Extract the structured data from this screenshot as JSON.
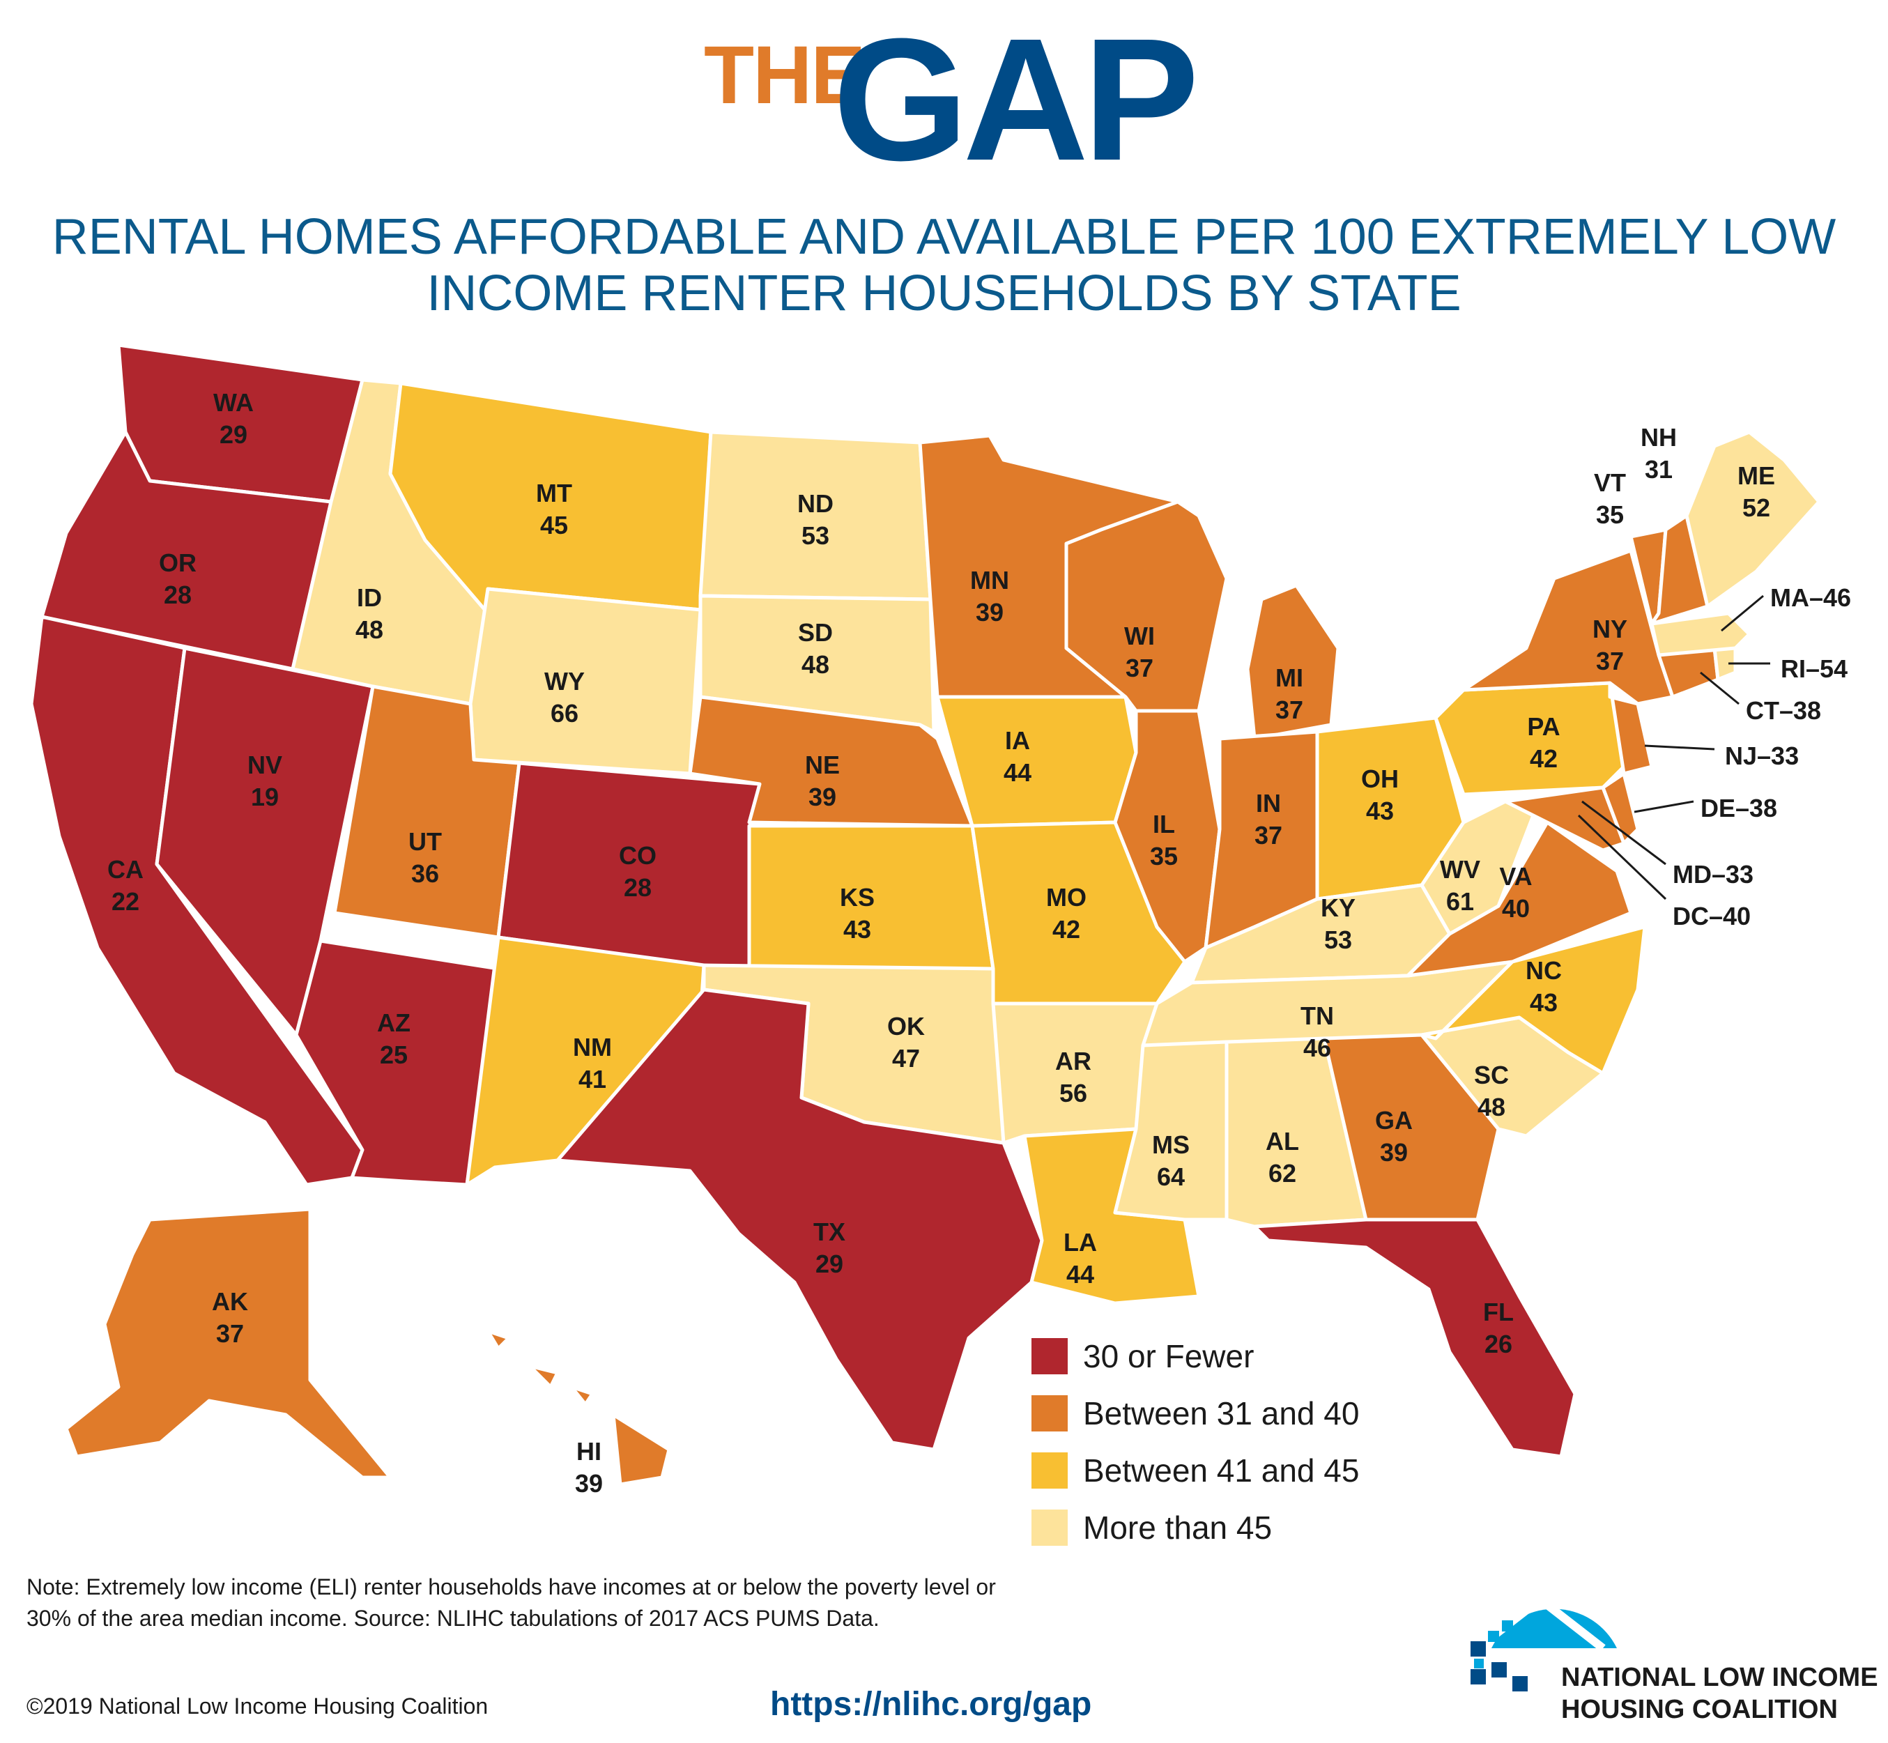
{
  "header": {
    "brand_the": "THE",
    "brand_gap": "GAP",
    "subtitle_line1": "RENTAL HOMES AFFORDABLE AND AVAILABLE PER 100 EXTREMELY LOW",
    "subtitle_line2": "INCOME RENTER HOUSEHOLDS BY STATE"
  },
  "colors": {
    "c1": "#b0262e",
    "c2": "#e07b2a",
    "c3": "#f8bf32",
    "c4": "#fde39b",
    "title_blue": "#004b87",
    "title_orange": "#e07b2a"
  },
  "legend": [
    {
      "label": "30 or Fewer",
      "color": "#b0262e"
    },
    {
      "label": "Between 31 and 40",
      "color": "#e07b2a"
    },
    {
      "label": "Between 41 and 45",
      "color": "#f8bf32"
    },
    {
      "label": "More than 45",
      "color": "#fde39b"
    }
  ],
  "states": [
    {
      "abbr": "WA",
      "value": "29",
      "cls": "c1"
    },
    {
      "abbr": "OR",
      "value": "28",
      "cls": "c1"
    },
    {
      "abbr": "CA",
      "value": "22",
      "cls": "c1"
    },
    {
      "abbr": "NV",
      "value": "19",
      "cls": "c1"
    },
    {
      "abbr": "ID",
      "value": "48",
      "cls": "c4"
    },
    {
      "abbr": "MT",
      "value": "45",
      "cls": "c3"
    },
    {
      "abbr": "WY",
      "value": "66",
      "cls": "c4"
    },
    {
      "abbr": "UT",
      "value": "36",
      "cls": "c2"
    },
    {
      "abbr": "AZ",
      "value": "25",
      "cls": "c1"
    },
    {
      "abbr": "CO",
      "value": "28",
      "cls": "c1"
    },
    {
      "abbr": "NM",
      "value": "41",
      "cls": "c3"
    },
    {
      "abbr": "ND",
      "value": "53",
      "cls": "c4"
    },
    {
      "abbr": "SD",
      "value": "48",
      "cls": "c4"
    },
    {
      "abbr": "NE",
      "value": "39",
      "cls": "c2"
    },
    {
      "abbr": "KS",
      "value": "43",
      "cls": "c3"
    },
    {
      "abbr": "OK",
      "value": "47",
      "cls": "c4"
    },
    {
      "abbr": "TX",
      "value": "29",
      "cls": "c1"
    },
    {
      "abbr": "MN",
      "value": "39",
      "cls": "c2"
    },
    {
      "abbr": "IA",
      "value": "44",
      "cls": "c3"
    },
    {
      "abbr": "MO",
      "value": "42",
      "cls": "c3"
    },
    {
      "abbr": "AR",
      "value": "56",
      "cls": "c4"
    },
    {
      "abbr": "LA",
      "value": "44",
      "cls": "c3"
    },
    {
      "abbr": "WI",
      "value": "37",
      "cls": "c2"
    },
    {
      "abbr": "IL",
      "value": "35",
      "cls": "c2"
    },
    {
      "abbr": "MI",
      "value": "37",
      "cls": "c2"
    },
    {
      "abbr": "IN",
      "value": "37",
      "cls": "c2"
    },
    {
      "abbr": "OH",
      "value": "43",
      "cls": "c3"
    },
    {
      "abbr": "KY",
      "value": "53",
      "cls": "c4"
    },
    {
      "abbr": "TN",
      "value": "46",
      "cls": "c4"
    },
    {
      "abbr": "MS",
      "value": "64",
      "cls": "c4"
    },
    {
      "abbr": "AL",
      "value": "62",
      "cls": "c4"
    },
    {
      "abbr": "GA",
      "value": "39",
      "cls": "c2"
    },
    {
      "abbr": "FL",
      "value": "26",
      "cls": "c1"
    },
    {
      "abbr": "SC",
      "value": "48",
      "cls": "c4"
    },
    {
      "abbr": "NC",
      "value": "43",
      "cls": "c3"
    },
    {
      "abbr": "VA",
      "value": "40",
      "cls": "c2"
    },
    {
      "abbr": "WV",
      "value": "61",
      "cls": "c4"
    },
    {
      "abbr": "PA",
      "value": "42",
      "cls": "c3"
    },
    {
      "abbr": "NY",
      "value": "37",
      "cls": "c2"
    },
    {
      "abbr": "VT",
      "value": "35",
      "cls": "c2"
    },
    {
      "abbr": "NH",
      "value": "31",
      "cls": "c2"
    },
    {
      "abbr": "ME",
      "value": "52",
      "cls": "c4"
    },
    {
      "abbr": "AK",
      "value": "37",
      "cls": "c2"
    },
    {
      "abbr": "HI",
      "value": "39",
      "cls": "c2"
    }
  ],
  "callouts": [
    {
      "text": "MA–46",
      "cls": "c4"
    },
    {
      "text": "RI–54",
      "cls": "c4"
    },
    {
      "text": "CT–38",
      "cls": "c2"
    },
    {
      "text": "NJ–33",
      "cls": "c2"
    },
    {
      "text": "DE–38",
      "cls": "c2"
    },
    {
      "text": "MD–33",
      "cls": "c2"
    },
    {
      "text": "DC–40",
      "cls": "c2"
    }
  ],
  "footer": {
    "note_line1": "Note: Extremely low income (ELI) renter households have incomes at or below the poverty level or",
    "note_line2": "30% of the area median income. Source: NLIHC tabulations of 2017 ACS PUMS Data.",
    "copyright": "©2019 National Low Income Housing Coalition",
    "url": "https://nlihc.org/gap",
    "org_line1": "NATIONAL LOW INCOME",
    "org_line2": "HOUSING COALITION"
  }
}
